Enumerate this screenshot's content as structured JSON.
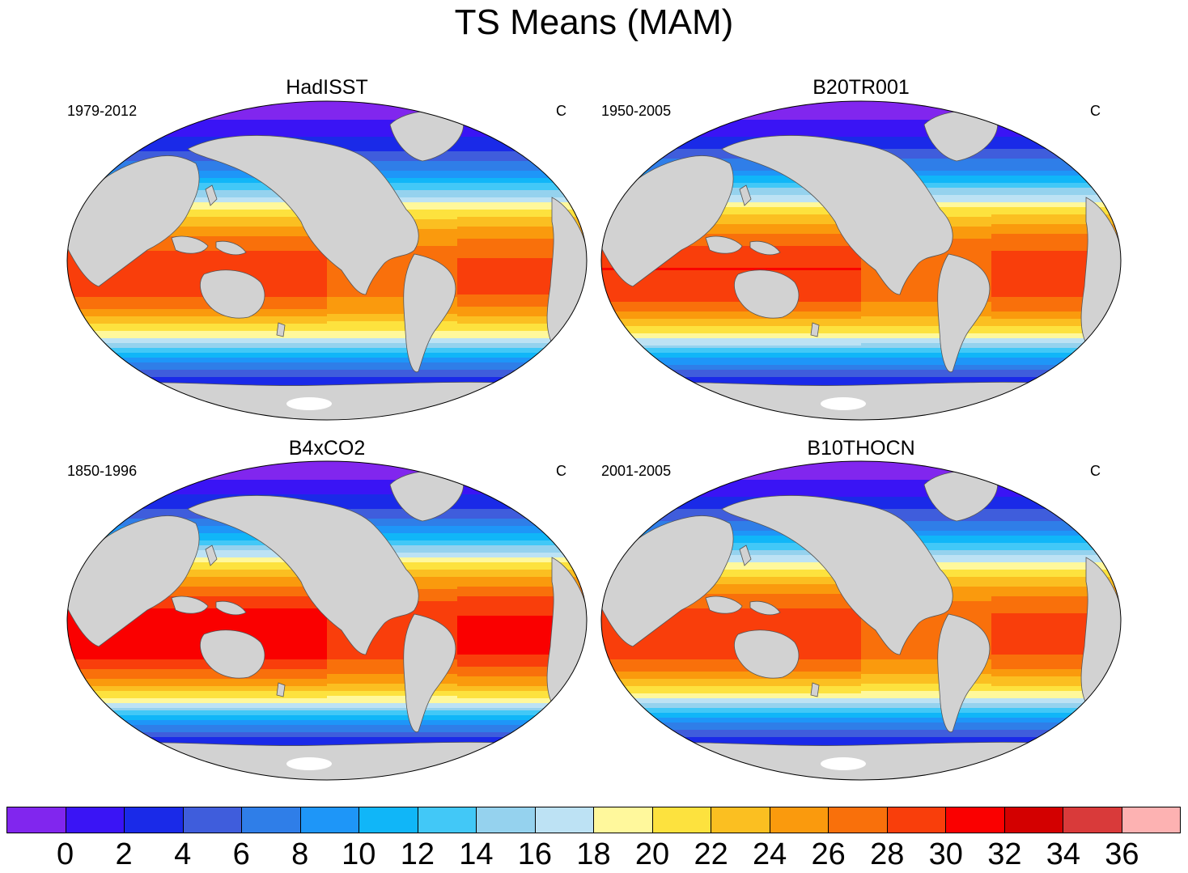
{
  "title": "TS Means (MAM)",
  "panels": [
    {
      "title": "HadISST",
      "period": "1979-2012",
      "unit": "C",
      "warmth": 0
    },
    {
      "title": "B20TR001",
      "period": "1950-2005",
      "unit": "C",
      "warmth": 0.6
    },
    {
      "title": "B4xCO2",
      "period": "1850-1996",
      "unit": "C",
      "warmth": 2.2
    },
    {
      "title": "B10THOCN",
      "period": "2001-2005",
      "unit": "C",
      "warmth": 0.3
    }
  ],
  "colorbar": {
    "colors": [
      "#8126ee",
      "#3a14f5",
      "#1a2ae8",
      "#3f5ddc",
      "#2f7ee8",
      "#1e96f8",
      "#10b6f8",
      "#42c8f7",
      "#95d2ee",
      "#bde2f4",
      "#fff89c",
      "#fde23e",
      "#fbbf21",
      "#fa9a0d",
      "#f9700b",
      "#f93e0b",
      "#fa0000",
      "#d30000",
      "#d93a3a",
      "#fdb2b2"
    ],
    "labels": [
      "0",
      "2",
      "4",
      "6",
      "8",
      "10",
      "12",
      "14",
      "16",
      "18",
      "20",
      "22",
      "24",
      "26",
      "28",
      "30",
      "32",
      "34",
      "36"
    ]
  },
  "land_color": "#d2d2d2"
}
